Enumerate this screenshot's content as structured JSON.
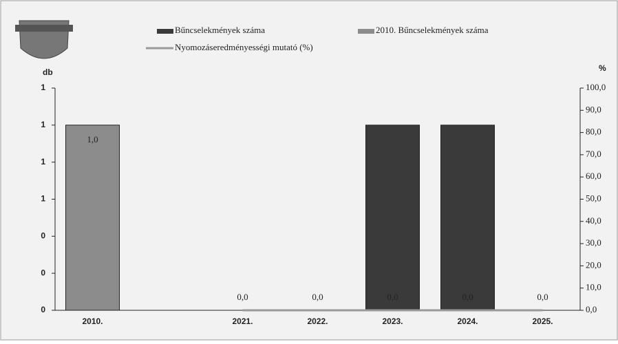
{
  "chart_data": {
    "type": "bar",
    "categories": [
      "2010.",
      null,
      "2021.",
      "2022.",
      "2023.",
      "2024.",
      "2025."
    ],
    "series": [
      {
        "name": "Bűncselekmények száma",
        "color": "#3a3a3a",
        "values": [
          0,
          null,
          0,
          0,
          1,
          1,
          0
        ]
      },
      {
        "name": "2010. Bűncselekmények száma",
        "color": "#8c8c8c",
        "values": [
          1,
          null,
          null,
          null,
          null,
          null,
          null
        ],
        "value_labels": [
          "1,0",
          null,
          null,
          null,
          null,
          null,
          null
        ]
      },
      {
        "name": "Nyomozáseredményességi mutató (%)",
        "type": "line",
        "axis": "y2",
        "color": "#999999",
        "values": [
          0,
          null,
          0,
          0,
          0,
          0,
          0
        ],
        "value_labels": [
          null,
          null,
          "0,0",
          "0,0",
          "0,0",
          "0,0",
          "0,0"
        ]
      }
    ],
    "ylabel": "db",
    "y2label": "%",
    "ylim": [
      0,
      1.2
    ],
    "yticks": [
      0,
      {
        "value": 0.2,
        "label": "0"
      },
      {
        "value": 0.4,
        "label": "0"
      },
      {
        "value": 0.6,
        "label": "1"
      },
      {
        "value": 0.8,
        "label": "1"
      },
      1,
      {
        "value": 1.2,
        "label": "1"
      }
    ],
    "y2lim": [
      0,
      100
    ],
    "y2ticks": [
      {
        "value": 0,
        "label": "0,0"
      },
      {
        "value": 10,
        "label": "10,0"
      },
      {
        "value": 20,
        "label": "20,0"
      },
      {
        "value": 30,
        "label": "30,0"
      },
      {
        "value": 40,
        "label": "40,0"
      },
      {
        "value": 50,
        "label": "50,0"
      },
      {
        "value": 60,
        "label": "60,0"
      },
      {
        "value": 70,
        "label": "70,0"
      },
      {
        "value": 80,
        "label": "80,0"
      },
      {
        "value": 90,
        "label": "90,0"
      },
      {
        "value": 100,
        "label": "100,0"
      }
    ]
  }
}
